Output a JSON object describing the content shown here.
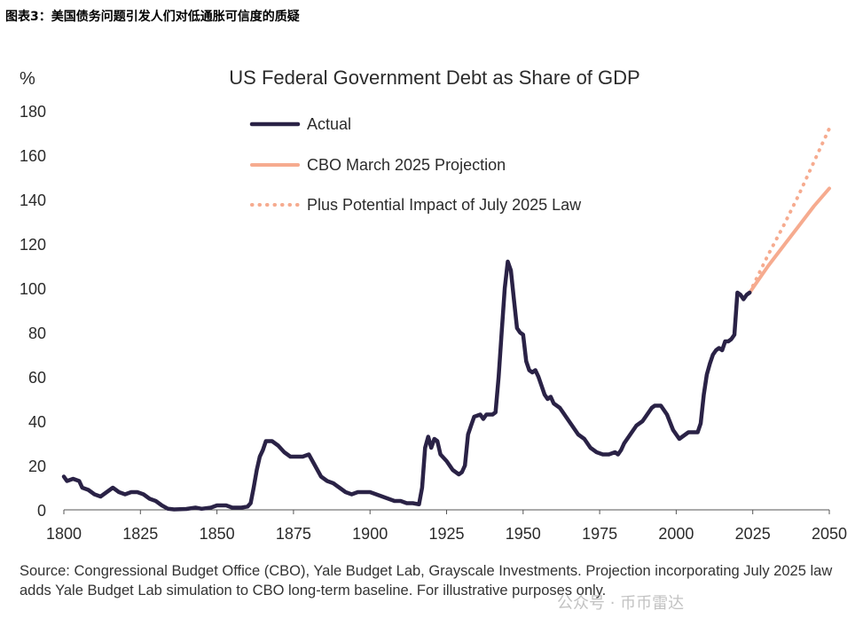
{
  "figure_caption": "图表3：美国债务问题引发人们对低通胀可信度的质疑",
  "source_note": "Source: Congressional Budget Office (CBO), Yale Budget Lab, Grayscale Investments. Projection incorporating July 2025 law adds Yale Budget Lab simulation to CBO long-term baseline. For illustrative purposes only.",
  "watermark": "公众号 · 币币雷达",
  "chart_data": {
    "type": "line",
    "title": "US Federal Government Debt as Share of GDP",
    "ylabel": "%",
    "xlabel": "",
    "xlim": [
      1800,
      2050
    ],
    "ylim": [
      0,
      180
    ],
    "x_ticks": [
      1800,
      1825,
      1850,
      1875,
      1900,
      1925,
      1950,
      1975,
      2000,
      2025,
      2050
    ],
    "y_ticks": [
      0,
      20,
      40,
      60,
      80,
      100,
      120,
      140,
      160,
      180
    ],
    "grid": false,
    "legend_position": "top-center",
    "colors": {
      "actual": "#2a2246",
      "projection": "#f6ab8f",
      "law": "#f6ab8f",
      "text": "#2b2b2b",
      "axis": "#555555"
    },
    "series": [
      {
        "name": "Actual",
        "style": "solid-thick",
        "points": [
          [
            1800,
            15
          ],
          [
            1801,
            13
          ],
          [
            1803,
            14
          ],
          [
            1805,
            13
          ],
          [
            1806,
            10
          ],
          [
            1808,
            9
          ],
          [
            1810,
            7
          ],
          [
            1812,
            6
          ],
          [
            1814,
            8
          ],
          [
            1816,
            10
          ],
          [
            1818,
            8
          ],
          [
            1820,
            7
          ],
          [
            1822,
            8
          ],
          [
            1824,
            8
          ],
          [
            1826,
            7
          ],
          [
            1828,
            5
          ],
          [
            1830,
            4
          ],
          [
            1832,
            2
          ],
          [
            1834,
            0.5
          ],
          [
            1836,
            0.2
          ],
          [
            1840,
            0.4
          ],
          [
            1843,
            1
          ],
          [
            1845,
            0.5
          ],
          [
            1848,
            1
          ],
          [
            1850,
            2
          ],
          [
            1853,
            2
          ],
          [
            1855,
            1
          ],
          [
            1858,
            1
          ],
          [
            1860,
            1.5
          ],
          [
            1861,
            3
          ],
          [
            1862,
            10
          ],
          [
            1863,
            18
          ],
          [
            1864,
            24
          ],
          [
            1865,
            27
          ],
          [
            1866,
            31
          ],
          [
            1868,
            31
          ],
          [
            1870,
            29
          ],
          [
            1872,
            26
          ],
          [
            1874,
            24
          ],
          [
            1876,
            24
          ],
          [
            1878,
            24
          ],
          [
            1880,
            25
          ],
          [
            1882,
            20
          ],
          [
            1884,
            15
          ],
          [
            1886,
            13
          ],
          [
            1888,
            12
          ],
          [
            1890,
            10
          ],
          [
            1892,
            8
          ],
          [
            1894,
            7
          ],
          [
            1896,
            8
          ],
          [
            1898,
            8
          ],
          [
            1900,
            8
          ],
          [
            1902,
            7
          ],
          [
            1904,
            6
          ],
          [
            1906,
            5
          ],
          [
            1908,
            4
          ],
          [
            1910,
            4
          ],
          [
            1912,
            3
          ],
          [
            1914,
            3
          ],
          [
            1916,
            2.5
          ],
          [
            1917,
            10
          ],
          [
            1918,
            28
          ],
          [
            1919,
            33
          ],
          [
            1920,
            28
          ],
          [
            1921,
            32
          ],
          [
            1922,
            31
          ],
          [
            1923,
            25
          ],
          [
            1925,
            22
          ],
          [
            1927,
            18
          ],
          [
            1929,
            16
          ],
          [
            1930,
            17
          ],
          [
            1931,
            20
          ],
          [
            1932,
            34
          ],
          [
            1933,
            38
          ],
          [
            1934,
            42
          ],
          [
            1936,
            43
          ],
          [
            1937,
            41
          ],
          [
            1938,
            43
          ],
          [
            1939,
            43
          ],
          [
            1940,
            43
          ],
          [
            1941,
            44
          ],
          [
            1942,
            60
          ],
          [
            1943,
            80
          ],
          [
            1944,
            100
          ],
          [
            1945,
            112
          ],
          [
            1946,
            108
          ],
          [
            1947,
            95
          ],
          [
            1948,
            82
          ],
          [
            1949,
            80
          ],
          [
            1950,
            79
          ],
          [
            1951,
            67
          ],
          [
            1952,
            63
          ],
          [
            1953,
            62
          ],
          [
            1954,
            63
          ],
          [
            1955,
            60
          ],
          [
            1957,
            52
          ],
          [
            1958,
            50
          ],
          [
            1959,
            51
          ],
          [
            1960,
            48
          ],
          [
            1962,
            46
          ],
          [
            1964,
            42
          ],
          [
            1966,
            38
          ],
          [
            1968,
            34
          ],
          [
            1970,
            32
          ],
          [
            1972,
            28
          ],
          [
            1974,
            26
          ],
          [
            1976,
            25
          ],
          [
            1978,
            25
          ],
          [
            1980,
            26
          ],
          [
            1981,
            25
          ],
          [
            1982,
            27
          ],
          [
            1983,
            30
          ],
          [
            1985,
            34
          ],
          [
            1987,
            38
          ],
          [
            1989,
            40
          ],
          [
            1990,
            42
          ],
          [
            1992,
            46
          ],
          [
            1993,
            47
          ],
          [
            1995,
            47
          ],
          [
            1997,
            43
          ],
          [
            1999,
            36
          ],
          [
            2001,
            32
          ],
          [
            2002,
            33
          ],
          [
            2004,
            35
          ],
          [
            2006,
            35
          ],
          [
            2007,
            35
          ],
          [
            2008,
            39
          ],
          [
            2009,
            52
          ],
          [
            2010,
            61
          ],
          [
            2011,
            66
          ],
          [
            2012,
            70
          ],
          [
            2013,
            72
          ],
          [
            2014,
            73
          ],
          [
            2015,
            72
          ],
          [
            2016,
            76
          ],
          [
            2017,
            76
          ],
          [
            2018,
            77
          ],
          [
            2019,
            79
          ],
          [
            2020,
            98
          ],
          [
            2021,
            97
          ],
          [
            2022,
            95
          ],
          [
            2023,
            97
          ],
          [
            2024,
            98
          ]
        ]
      },
      {
        "name": "CBO March 2025 Projection",
        "style": "solid",
        "points": [
          [
            2024,
            98
          ],
          [
            2030,
            110
          ],
          [
            2035,
            119
          ],
          [
            2040,
            128
          ],
          [
            2045,
            137
          ],
          [
            2050,
            145
          ]
        ]
      },
      {
        "name": "Plus Potential Impact of July 2025 Law",
        "style": "dotted",
        "points": [
          [
            2024,
            98
          ],
          [
            2030,
            115
          ],
          [
            2035,
            128
          ],
          [
            2040,
            142
          ],
          [
            2045,
            157
          ],
          [
            2050,
            172
          ]
        ]
      }
    ]
  }
}
